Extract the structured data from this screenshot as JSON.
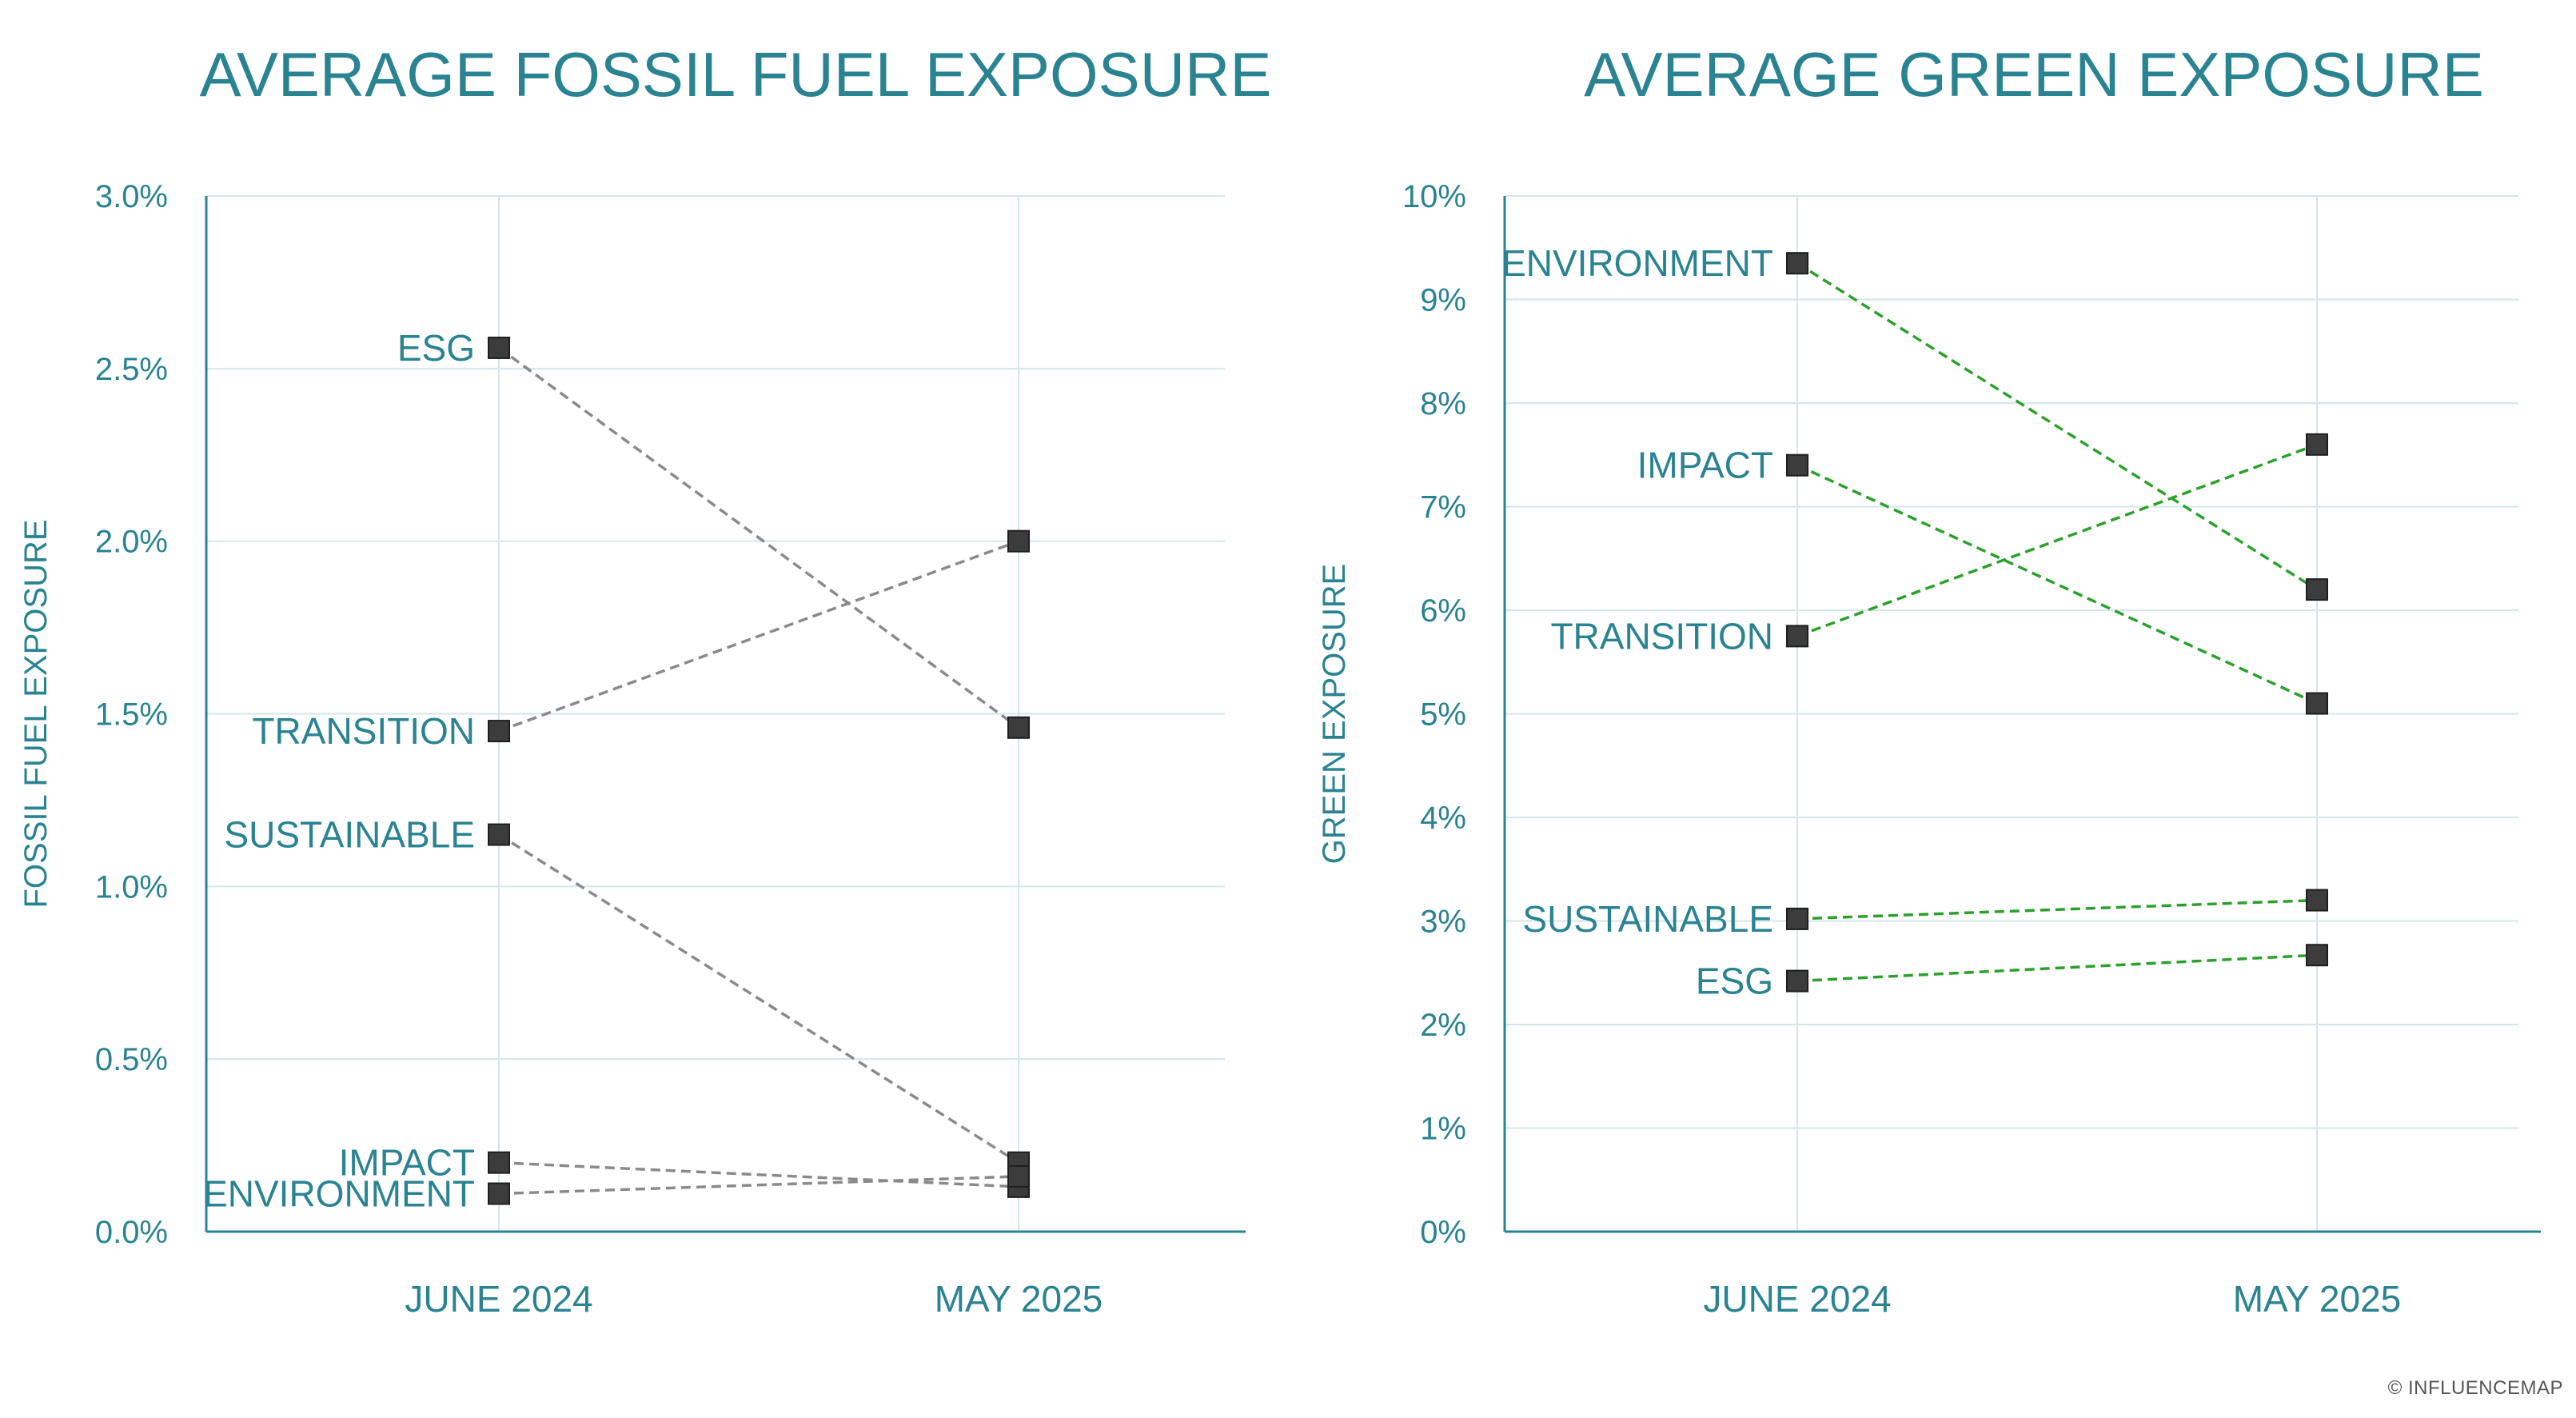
{
  "credit": "© INFLUENCEMAP",
  "colors": {
    "accent": "#2a8391",
    "grid": "#d5e6ea",
    "marker": "#3c3c3c",
    "fossil_line": "#8a8a8a",
    "green_line": "#2ca02c"
  },
  "chart_data": [
    {
      "type": "line",
      "title": "AVERAGE FOSSIL FUEL EXPOSURE",
      "ylabel": "FOSSIL FUEL EXPOSURE",
      "xlabel": "",
      "categories": [
        "JUNE 2024",
        "MAY 2025"
      ],
      "ylim": [
        0,
        3.0
      ],
      "yticks": [
        {
          "value": 0.0,
          "label": "0.0%"
        },
        {
          "value": 0.5,
          "label": "0.5%"
        },
        {
          "value": 1.0,
          "label": "1.0%"
        },
        {
          "value": 1.5,
          "label": "1.5%"
        },
        {
          "value": 2.0,
          "label": "2.0%"
        },
        {
          "value": 2.5,
          "label": "2.5%"
        },
        {
          "value": 3.0,
          "label": "3.0%"
        }
      ],
      "grid": true,
      "line_color": "#8a8a8a",
      "series": [
        {
          "name": "ESG",
          "values": [
            2.56,
            1.46
          ]
        },
        {
          "name": "TRANSITION",
          "values": [
            1.45,
            2.0
          ]
        },
        {
          "name": "SUSTAINABLE",
          "values": [
            1.15,
            0.2
          ]
        },
        {
          "name": "IMPACT",
          "values": [
            0.2,
            0.13
          ]
        },
        {
          "name": "ENVIRONMENT",
          "values": [
            0.11,
            0.16
          ]
        }
      ]
    },
    {
      "type": "line",
      "title": "AVERAGE GREEN EXPOSURE",
      "ylabel": "GREEN EXPOSURE",
      "xlabel": "",
      "categories": [
        "JUNE 2024",
        "MAY 2025"
      ],
      "ylim": [
        0,
        10
      ],
      "yticks": [
        {
          "value": 0,
          "label": "0%"
        },
        {
          "value": 1,
          "label": "1%"
        },
        {
          "value": 2,
          "label": "2%"
        },
        {
          "value": 3,
          "label": "3%"
        },
        {
          "value": 4,
          "label": "4%"
        },
        {
          "value": 5,
          "label": "5%"
        },
        {
          "value": 6,
          "label": "6%"
        },
        {
          "value": 7,
          "label": "7%"
        },
        {
          "value": 8,
          "label": "8%"
        },
        {
          "value": 9,
          "label": "9%"
        },
        {
          "value": 10,
          "label": "10%"
        }
      ],
      "grid": true,
      "line_color": "#2ca02c",
      "series": [
        {
          "name": "ENVIRONMENT",
          "values": [
            9.35,
            6.2
          ]
        },
        {
          "name": "IMPACT",
          "values": [
            7.4,
            5.1
          ]
        },
        {
          "name": "TRANSITION",
          "values": [
            5.75,
            7.6
          ]
        },
        {
          "name": "SUSTAINABLE",
          "values": [
            3.02,
            3.2
          ]
        },
        {
          "name": "ESG",
          "values": [
            2.42,
            2.67
          ]
        }
      ]
    }
  ]
}
